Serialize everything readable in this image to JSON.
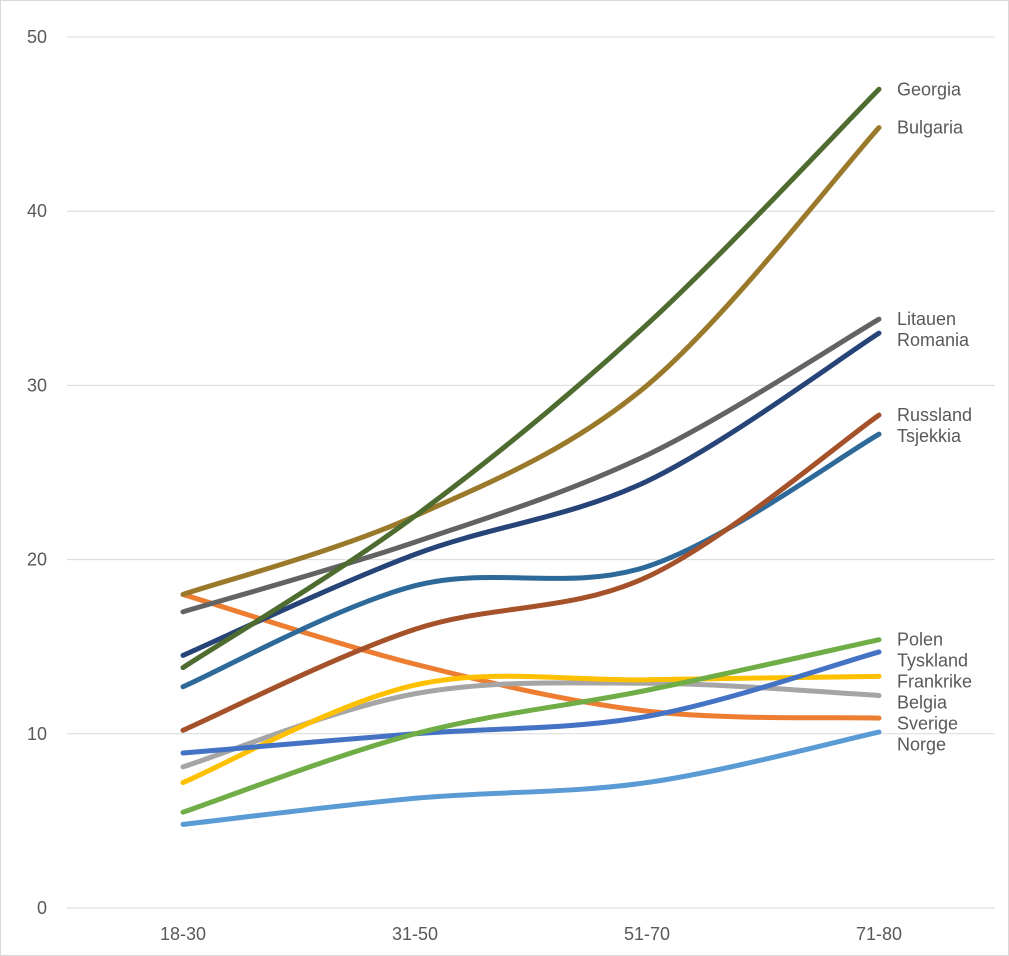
{
  "chart_data": {
    "type": "line",
    "categories": [
      "18-30",
      "31-50",
      "51-70",
      "71-80"
    ],
    "ylim": [
      0,
      50
    ],
    "yticks": [
      0,
      10,
      20,
      30,
      40,
      50
    ],
    "grid": true,
    "smooth": true,
    "series": [
      {
        "name": "Georgia",
        "color": "#4e6b30",
        "values": [
          13.8,
          22.5,
          33.5,
          47.0
        ]
      },
      {
        "name": "Bulgaria",
        "color": "#9a7a2a",
        "values": [
          18.0,
          22.5,
          30.0,
          44.8
        ]
      },
      {
        "name": "Litauen",
        "color": "#636363",
        "values": [
          17.0,
          21.0,
          26.0,
          33.8
        ]
      },
      {
        "name": "Romania",
        "color": "#264478",
        "values": [
          14.5,
          20.3,
          24.5,
          33.0
        ]
      },
      {
        "name": "Russland",
        "color": "#a5522b",
        "values": [
          10.2,
          16.0,
          19.0,
          28.3
        ]
      },
      {
        "name": "Tsjekkia",
        "color": "#2e6a99",
        "values": [
          12.7,
          18.5,
          19.6,
          27.2
        ]
      },
      {
        "name": "Polen",
        "color": "#70ad47",
        "values": [
          5.5,
          10.0,
          12.5,
          15.4
        ]
      },
      {
        "name": "Tyskland",
        "color": "#4472c4",
        "values": [
          8.9,
          10.0,
          11.0,
          14.7
        ]
      },
      {
        "name": "Frankrike",
        "color": "#ffc000",
        "values": [
          7.2,
          12.8,
          13.1,
          13.3
        ]
      },
      {
        "name": "Belgia",
        "color": "#a5a5a5",
        "values": [
          8.1,
          12.3,
          12.9,
          12.2
        ]
      },
      {
        "name": "Sverige",
        "color": "#ed7d31",
        "values": [
          18.0,
          14.0,
          11.3,
          10.9
        ]
      },
      {
        "name": "Norge",
        "color": "#5b9bd5",
        "values": [
          4.8,
          6.3,
          7.2,
          10.1
        ]
      }
    ]
  }
}
